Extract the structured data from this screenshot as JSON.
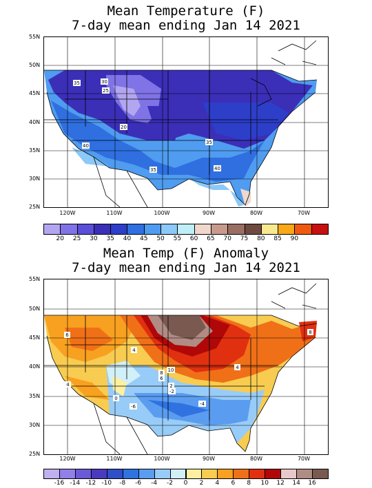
{
  "panels": {
    "temp": {
      "title_line1": "Mean Temperature (F)",
      "title_line2": "7-day mean ending Jan 14 2021",
      "lat_labels": [
        "55N",
        "50N",
        "45N",
        "40N",
        "35N",
        "30N",
        "25N"
      ],
      "lon_labels": [
        "120W",
        "110W",
        "100W",
        "90W",
        "80W",
        "70W"
      ],
      "colorbar": {
        "colors": [
          "#b3a6f0",
          "#7f73e6",
          "#5a4fd8",
          "#3b2fb8",
          "#2d3ec9",
          "#2f6fe0",
          "#4f9cf0",
          "#8cc8f8",
          "#bfeef8",
          "#f0d8cc",
          "#c89a8e",
          "#9a6e62",
          "#6e4a40",
          "#f8e890",
          "#f8a818",
          "#f05a10",
          "#c81010"
        ],
        "labels": [
          "20",
          "25",
          "30",
          "35",
          "40",
          "45",
          "50",
          "55",
          "60",
          "65",
          "70",
          "75",
          "80",
          "85",
          "90"
        ]
      },
      "contour_labels": [
        "35",
        "30",
        "25",
        "20",
        "40",
        "35",
        "35",
        "40"
      ]
    },
    "anom": {
      "title_line1": "Mean Temp (F) Anomaly",
      "title_line2": "7-day mean ending Jan 14 2021",
      "lat_labels": [
        "55N",
        "50N",
        "45N",
        "40N",
        "35N",
        "30N",
        "25N"
      ],
      "lon_labels": [
        "120W",
        "110W",
        "100W",
        "90W",
        "80W",
        "70W"
      ],
      "colorbar": {
        "colors": [
          "#c0b0f0",
          "#9080e8",
          "#6a5ad8",
          "#4a3ac0",
          "#2f4fc8",
          "#2f72e0",
          "#5a9cf0",
          "#98ccf8",
          "#d2f0f8",
          "#fff0a0",
          "#f8cc50",
          "#f8a020",
          "#f07018",
          "#e03010",
          "#b00808",
          "#e8c8c8",
          "#b08c84",
          "#7a5a50"
        ],
        "labels": [
          "-16",
          "-14",
          "-12",
          "-10",
          "-8",
          "-6",
          "-4",
          "-2",
          "0",
          "2",
          "4",
          "6",
          "8",
          "10",
          "12",
          "14",
          "16"
        ]
      },
      "contour_labels": [
        "6",
        "4",
        "10",
        "8",
        "6",
        "4",
        "2",
        "0",
        "4",
        "-2",
        "-4",
        "-6",
        "8"
      ]
    }
  }
}
